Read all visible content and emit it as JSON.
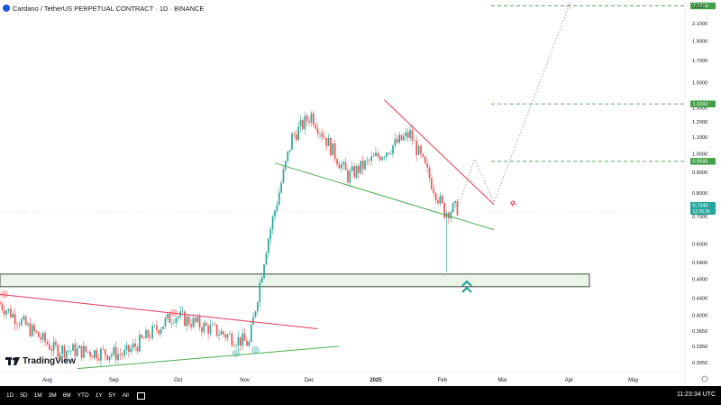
{
  "header": {
    "title": "Cardano / TetherUS PERPETUAL CONTRACT · 1D · BINANCE"
  },
  "price_axis": {
    "currency": "USDT",
    "scale": "log",
    "ticks": [
      "2.1000",
      "1.9000",
      "1.7000",
      "1.5000",
      "1.3000",
      "1.2000",
      "1.1000",
      "1.0000",
      "0.9000",
      "0.8000",
      "0.7000",
      "0.6000",
      "0.5400",
      "0.4900",
      "0.4400",
      "0.4000",
      "0.3650",
      "0.3350",
      "0.3050"
    ]
  },
  "time_axis": {
    "ticks": [
      "Aug",
      "Sep",
      "Oct",
      "Nov",
      "Dec",
      "2025",
      "Feb",
      "Mar",
      "Apr",
      "May"
    ]
  },
  "badges": {
    "target_top": "2.3215",
    "target_mid": "1.3292",
    "target_low": "0.9585",
    "current_price": "0.7340",
    "countdown": "12:36:26"
  },
  "colors": {
    "up": "#26a69a",
    "down": "#ef5350",
    "target_line": "#43a047",
    "support_trend": "#4caf50",
    "resistance_trend": "#e53958",
    "zone_fill": "#e9f5e6"
  },
  "annotations": {
    "marker_letter": "R"
  },
  "chart_data": {
    "type": "candlestick",
    "symbol": "Cardano / TetherUS PERPETUAL CONTRACT",
    "interval": "1D",
    "exchange": "BINANCE",
    "y_scale": "log",
    "ylim": [
      0.29,
      2.4
    ],
    "x_range": [
      "2024-07-10",
      "2025-05-25"
    ],
    "summary_points": [
      {
        "date": "2024-07-10",
        "price": 0.43
      },
      {
        "date": "2024-08-05",
        "price": 0.33
      },
      {
        "date": "2024-09-07",
        "price": 0.32
      },
      {
        "date": "2024-09-30",
        "price": 0.4
      },
      {
        "date": "2024-11-04",
        "price": 0.34
      },
      {
        "date": "2024-11-12",
        "price": 0.59
      },
      {
        "date": "2024-11-24",
        "price": 1.1
      },
      {
        "date": "2024-12-03",
        "price": 1.25
      },
      {
        "date": "2024-12-20",
        "price": 0.88
      },
      {
        "date": "2025-01-18",
        "price": 1.12
      },
      {
        "date": "2025-02-03",
        "price": 0.72
      },
      {
        "date": "2025-02-08",
        "price": 0.734
      }
    ],
    "levels": [
      {
        "label": "2.3215",
        "price": 2.3215
      },
      {
        "label": "1.3292",
        "price": 1.3292
      },
      {
        "label": "0.9585",
        "price": 0.9585
      }
    ],
    "demand_zone": {
      "low": 0.47,
      "high": 0.505
    },
    "trendlines": [
      {
        "color": "green",
        "from": {
          "date": "2024-11-15",
          "price": 0.95
        },
        "to": {
          "date": "2025-02-25",
          "price": 0.65
        }
      },
      {
        "color": "red",
        "from": {
          "date": "2025-01-05",
          "price": 1.36
        },
        "to": {
          "date": "2025-02-25",
          "price": 0.75
        }
      },
      {
        "color": "red",
        "from": {
          "date": "2024-07-10",
          "price": 0.45
        },
        "to": {
          "date": "2024-12-05",
          "price": 0.37
        }
      },
      {
        "color": "green",
        "from": {
          "date": "2024-08-15",
          "price": 0.295
        },
        "to": {
          "date": "2024-12-15",
          "price": 0.335
        }
      }
    ],
    "projection": [
      {
        "date": "2025-02-08",
        "price": 0.73
      },
      {
        "date": "2025-02-16",
        "price": 0.97
      },
      {
        "date": "2025-02-25",
        "price": 0.76
      },
      {
        "date": "2025-04-01",
        "price": 2.3215
      }
    ]
  },
  "branding": {
    "name": "TradingView"
  },
  "bottom_bar": {
    "timeframes": [
      "1D",
      "5D",
      "1M",
      "3M",
      "6M",
      "YTD",
      "1Y",
      "5Y",
      "All"
    ],
    "clock": "11:23:34 UTC"
  }
}
